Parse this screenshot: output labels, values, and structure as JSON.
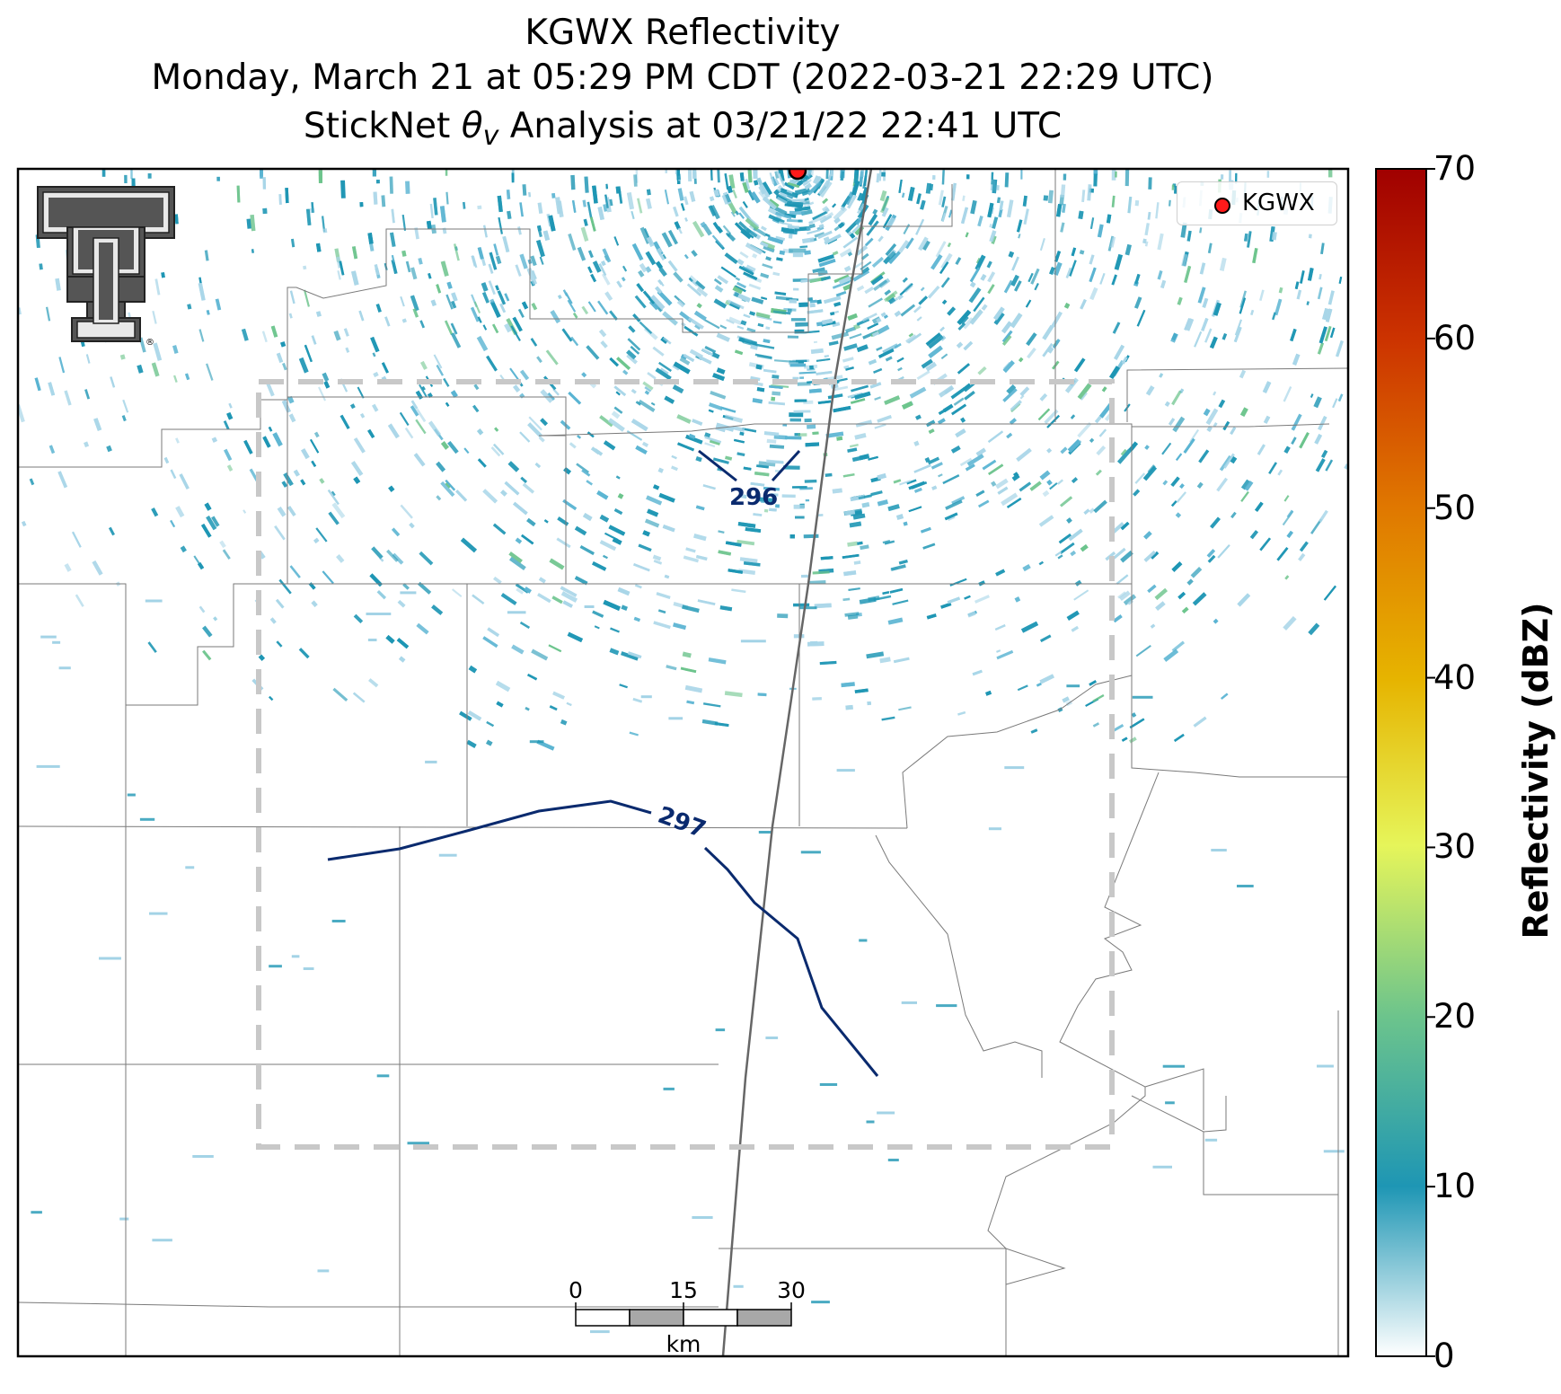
{
  "title": {
    "line1": "KGWX Reflectivity",
    "line2": "Monday, March 21 at 05:29 PM CDT (2022-03-21 22:29 UTC)",
    "line3_prefix": "StickNet ",
    "line3_symbol": "θ",
    "line3_subscript": "v",
    "line3_suffix": " Analysis at 03/21/22 22:41 UTC"
  },
  "legend": {
    "radar_label": "KGWX",
    "marker_color": "#ff1a1a"
  },
  "colorbar": {
    "label": "Reflectivity (dBZ)",
    "min": 0,
    "max": 70,
    "ticks": [
      "0",
      "10",
      "20",
      "30",
      "40",
      "50",
      "60",
      "70"
    ],
    "colors": [
      "#ffffff",
      "#1e96b4",
      "#6cc48c",
      "#e6f55a",
      "#e6b400",
      "#e07800",
      "#cc3300",
      "#a00000"
    ]
  },
  "contours": [
    {
      "label": "296",
      "color": "#0a2a6e"
    },
    {
      "label": "297",
      "color": "#0a2a6e"
    }
  ],
  "scale_bar": {
    "ticks": [
      "0",
      "15",
      "30"
    ],
    "unit": "km"
  },
  "logo": {
    "name": "Texas Tech Double T",
    "mark": "®"
  },
  "icons": {
    "radar_marker": "radar-site-icon",
    "logo": "double-t-logo-icon"
  }
}
